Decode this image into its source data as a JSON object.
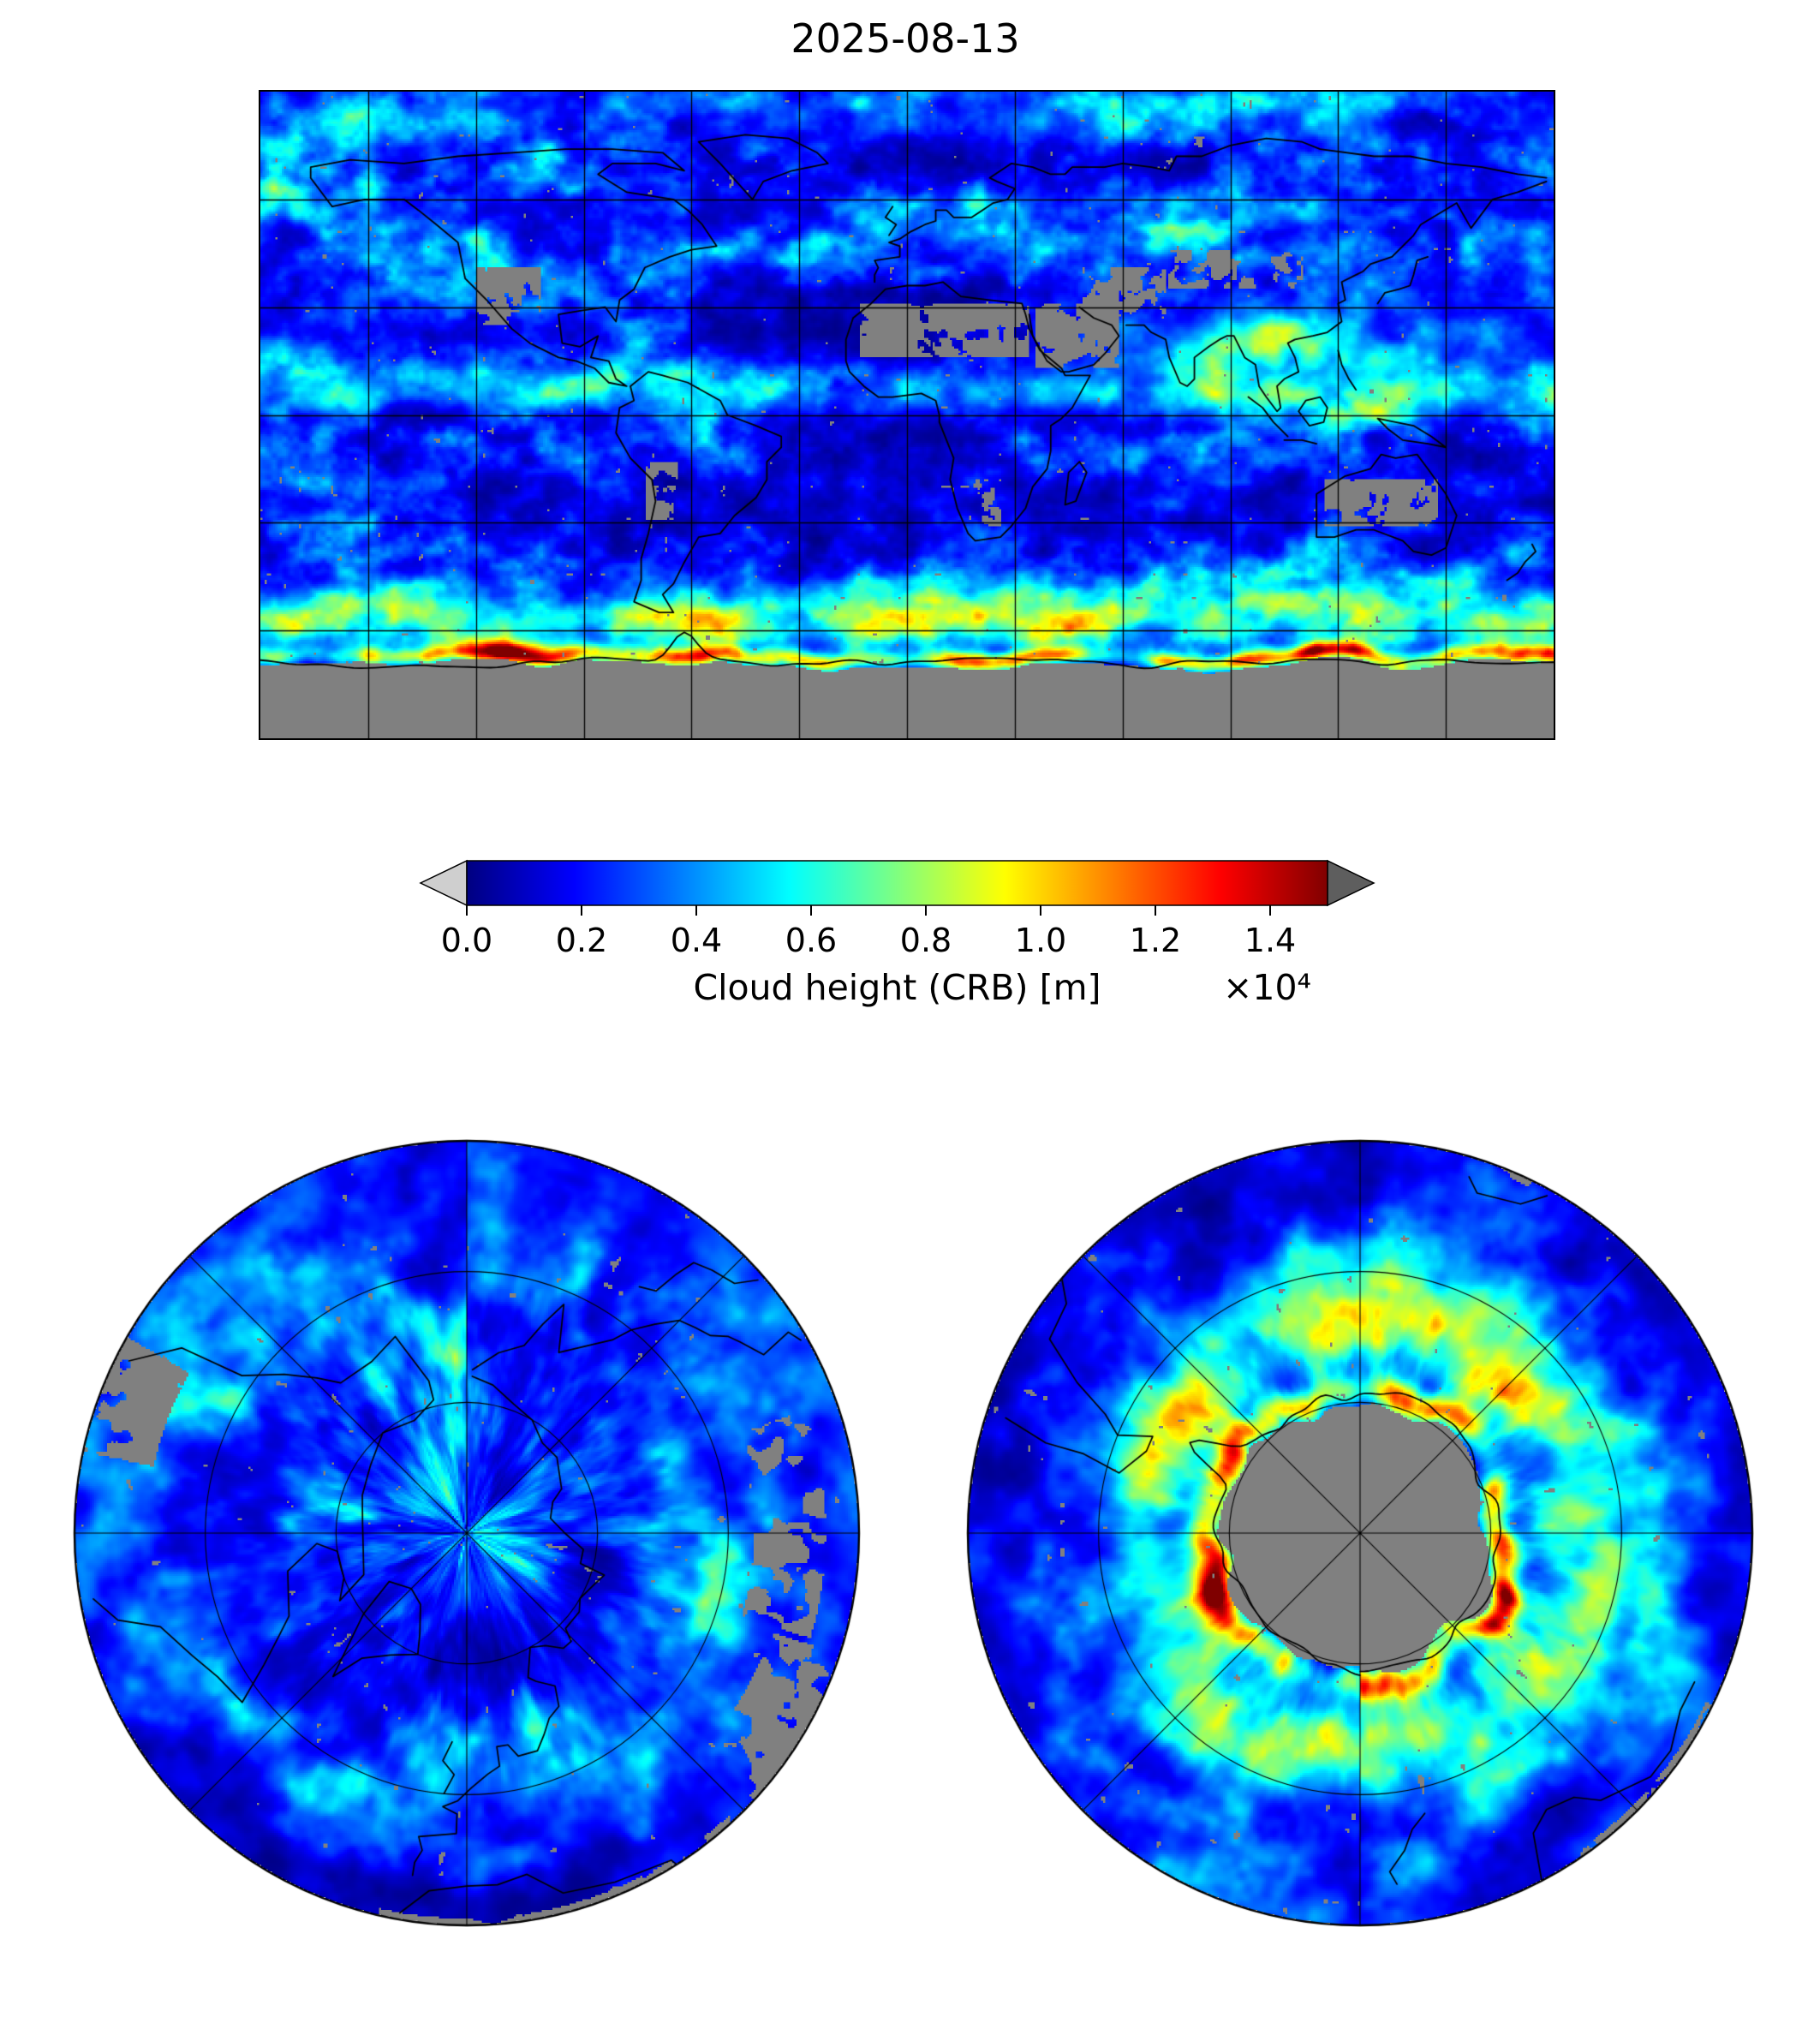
{
  "figure": {
    "title": "2025-08-13",
    "colorbar": {
      "label": "Cloud height (CRB) [m]",
      "scale_note": "×10⁴",
      "ticks": [
        "0.0",
        "0.2",
        "0.4",
        "0.6",
        "0.8",
        "1.0",
        "1.2",
        "1.4"
      ],
      "colormap": "jet",
      "under_color": "#cfcfcf",
      "over_color": "#5e5e5e",
      "nodata_color": "#808080"
    }
  },
  "chart_data": {
    "type": "heatmap",
    "title": "2025-08-13",
    "variable": "Cloud height (CRB) [m]",
    "units": "m",
    "colormap": "jet",
    "value_range": [
      0,
      15000
    ],
    "colorbar_ticks": [
      0,
      2000,
      4000,
      6000,
      8000,
      10000,
      12000,
      14000
    ],
    "colorbar_tick_labels": [
      "0.0",
      "0.2",
      "0.4",
      "0.6",
      "0.8",
      "1.0",
      "1.2",
      "1.4"
    ],
    "colorbar_scale_factor": 10000,
    "legend_position": "horizontal, below global map",
    "grid": true,
    "panels": [
      {
        "name": "global-map",
        "projection": "equirectangular",
        "lon_range": [
          -180,
          180
        ],
        "lat_range": [
          -90,
          90
        ],
        "gridline_spacing_deg": 30
      },
      {
        "name": "north-polar-view",
        "projection": "polar-azimuthal",
        "pole": "north",
        "graticule_circles": 2,
        "radial_lines_deg": 45
      },
      {
        "name": "south-polar-view",
        "projection": "polar-azimuthal",
        "pole": "south",
        "graticule_circles": 2,
        "radial_lines_deg": 45
      }
    ],
    "no_data_color": "gray",
    "description": "Daily global cloud-top height field with coastlines; gray = no data (deserts, Antarctic interior, sea ice); highest clouds (yellow to red) along the Southern Ocean storm track near Antarctica and over the tropical warm pool."
  }
}
